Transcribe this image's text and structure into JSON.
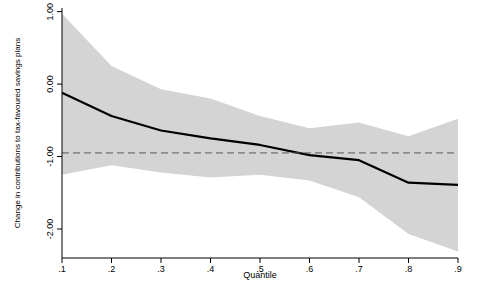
{
  "chart_data": {
    "type": "line",
    "x_label": "Quantile",
    "y_label": "Change in contributions to tax-favoured savings plans",
    "x": [
      0.1,
      0.2,
      0.3,
      0.4,
      0.5,
      0.6,
      0.7,
      0.8,
      0.9
    ],
    "series": [
      {
        "color": "#000000",
        "line_style": "solid",
        "values": [
          -0.12,
          -0.44,
          -0.64,
          -0.75,
          -0.84,
          -0.98,
          -1.05,
          -1.36,
          -1.39
        ],
        "upper": [
          0.97,
          0.25,
          -0.07,
          -0.2,
          -0.44,
          -0.61,
          -0.53,
          -0.72,
          -0.48
        ],
        "lower": [
          -1.25,
          -1.12,
          -1.22,
          -1.29,
          -1.25,
          -1.33,
          -1.56,
          -2.07,
          -2.31
        ],
        "band_color": "#d4d4d4"
      },
      {
        "color": "#555555",
        "line_style": "dashed",
        "values": [
          -0.95,
          -0.95,
          -0.95,
          -0.95,
          -0.95,
          -0.95,
          -0.95,
          -0.95,
          -0.95
        ]
      }
    ],
    "xlim": [
      0.1,
      0.9
    ],
    "ylim": [
      -2.4,
      1.05
    ],
    "xticks": [
      {
        "value": 0.1,
        "label": ".1"
      },
      {
        "value": 0.2,
        "label": ".2"
      },
      {
        "value": 0.3,
        "label": ".3"
      },
      {
        "value": 0.4,
        "label": ".4"
      },
      {
        "value": 0.5,
        "label": ".5"
      },
      {
        "value": 0.6,
        "label": ".6"
      },
      {
        "value": 0.7,
        "label": ".7"
      },
      {
        "value": 0.8,
        "label": ".8"
      },
      {
        "value": 0.9,
        "label": ".9"
      }
    ],
    "yticks": [
      {
        "value": 1,
        "label": "1.00"
      },
      {
        "value": 0,
        "label": "0.00"
      },
      {
        "value": -1,
        "label": "-1.00"
      },
      {
        "value": -2,
        "label": "-2.00"
      }
    ],
    "grid": false
  }
}
